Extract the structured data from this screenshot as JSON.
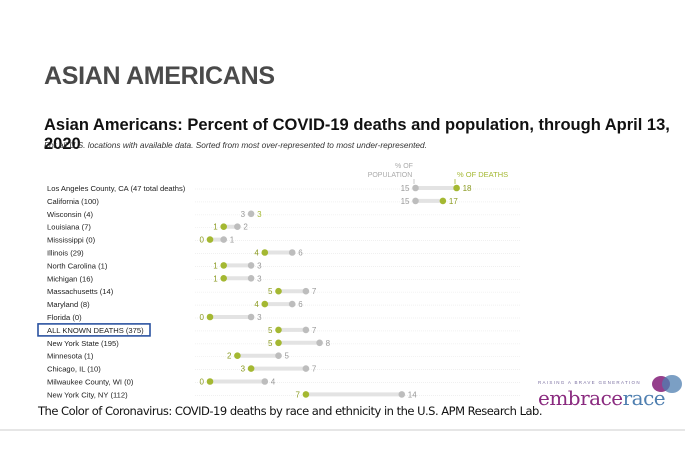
{
  "slide": {
    "title": "ASIAN AMERICANS",
    "caption": "The Color of Coronavirus: COVID-19 deaths by race and ethnicity in the U.S. APM Research Lab."
  },
  "logo": {
    "tagline": "RAISING A BRAVE GENERATION",
    "word_part1": "embrace",
    "word_part2": "race",
    "colors": {
      "embrace": "#8a2a7f",
      "race": "#4f7fb0",
      "bubble1": "#8a2a7f",
      "bubble2": "#4f7fb0"
    }
  },
  "chart_data": {
    "type": "dumbbell",
    "title": "Asian Americans: Percent of COVID-19 deaths and population, through April 13, 2020",
    "subtitle": "For all U.S. locations with available data. Sorted from most over-represented to most under-represented.",
    "legend": {
      "population_label_line1": "% OF",
      "population_label_line2": "POPULATION",
      "deaths_label": "% OF DEATHS",
      "placement": "top-right"
    },
    "colors": {
      "deaths": "#a4b832",
      "population": "#bdbdbd",
      "bar": "#e3e3e3",
      "highlight_box": "#2a52a0",
      "gridline": "#ececec"
    },
    "xlim": [
      0,
      18
    ],
    "highlighted_row": "ALL KNOWN DEATHS (375)",
    "rows": [
      {
        "label": "Los Angeles County, CA (47 total deaths)",
        "pct_population": 15,
        "pct_deaths": 18
      },
      {
        "label": "California (100)",
        "pct_population": 15,
        "pct_deaths": 17
      },
      {
        "label": "Wisconsin (4)",
        "pct_population": 3,
        "pct_deaths": 3
      },
      {
        "label": "Louisiana (7)",
        "pct_population": 2,
        "pct_deaths": 1
      },
      {
        "label": "Mississippi (0)",
        "pct_population": 1,
        "pct_deaths": 0
      },
      {
        "label": "Illinois (29)",
        "pct_population": 6,
        "pct_deaths": 4
      },
      {
        "label": "North Carolina (1)",
        "pct_population": 3,
        "pct_deaths": 1
      },
      {
        "label": "Michigan (16)",
        "pct_population": 3,
        "pct_deaths": 1
      },
      {
        "label": "Massachusetts (14)",
        "pct_population": 7,
        "pct_deaths": 5
      },
      {
        "label": "Maryland (8)",
        "pct_population": 6,
        "pct_deaths": 4
      },
      {
        "label": "Florida (0)",
        "pct_population": 3,
        "pct_deaths": 0
      },
      {
        "label": "ALL KNOWN DEATHS (375)",
        "pct_population": 7,
        "pct_deaths": 5
      },
      {
        "label": "New York State (195)",
        "pct_population": 8,
        "pct_deaths": 5
      },
      {
        "label": "Minnesota (1)",
        "pct_population": 5,
        "pct_deaths": 2
      },
      {
        "label": "Chicago, IL (10)",
        "pct_population": 7,
        "pct_deaths": 3
      },
      {
        "label": "Milwaukee County, WI (0)",
        "pct_population": 4,
        "pct_deaths": 0
      },
      {
        "label": "New York City, NY (112)",
        "pct_population": 14,
        "pct_deaths": 7
      }
    ]
  }
}
